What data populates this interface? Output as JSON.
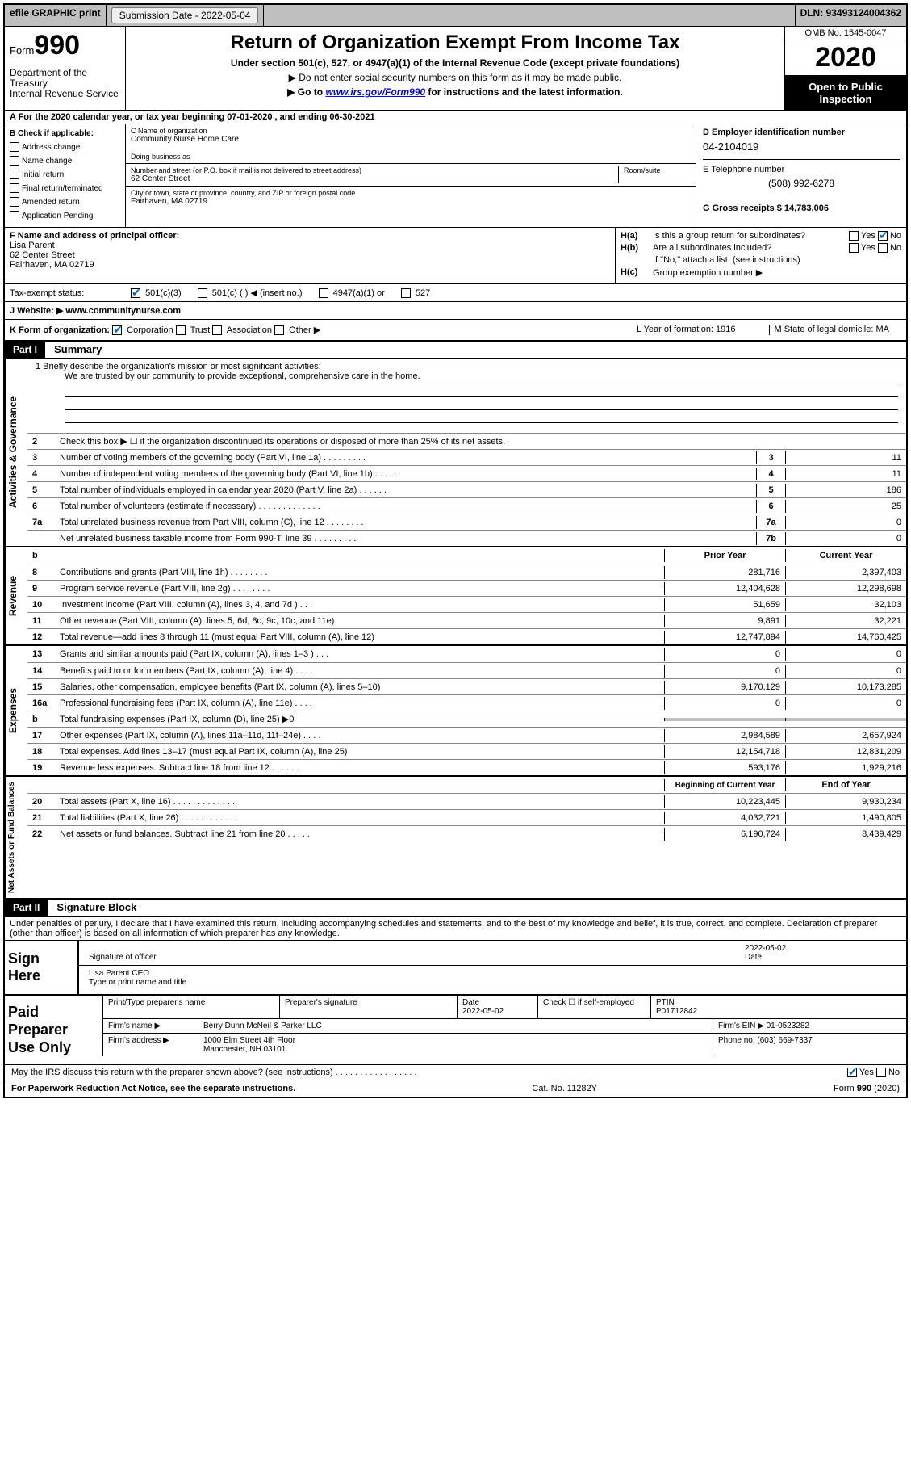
{
  "topbar": {
    "efile": "efile GRAPHIC print",
    "submission": "Submission Date - 2022-05-04",
    "dln": "DLN: 93493124004362"
  },
  "header": {
    "form": "Form",
    "num": "990",
    "dept": "Department of the Treasury\nInternal Revenue Service",
    "title": "Return of Organization Exempt From Income Tax",
    "subtitle": "Under section 501(c), 527, or 4947(a)(1) of the Internal Revenue Code (except private foundations)",
    "arrow1": "▶ Do not enter social security numbers on this form as it may be made public.",
    "arrow2_pre": "▶ Go to ",
    "arrow2_link": "www.irs.gov/Form990",
    "arrow2_post": " for instructions and the latest information.",
    "omb": "OMB No. 1545-0047",
    "year": "2020",
    "open": "Open to Public Inspection"
  },
  "row_a": "A For the 2020 calendar year, or tax year beginning 07-01-2020    , and ending 06-30-2021",
  "col_b": {
    "title": "B Check if applicable:",
    "items": [
      "Address change",
      "Name change",
      "Initial return",
      "Final return/terminated",
      "Amended return",
      "Application Pending"
    ]
  },
  "col_c": {
    "name_label": "C Name of organization",
    "name": "Community Nurse Home Care",
    "dba_label": "Doing business as",
    "dba": "",
    "street_label": "Number and street (or P.O. box if mail is not delivered to street address)",
    "street": "62 Center Street",
    "room_label": "Room/suite",
    "city_label": "City or town, state or province, country, and ZIP or foreign postal code",
    "city": "Fairhaven, MA  02719"
  },
  "col_de": {
    "d_label": "D Employer identification number",
    "d_val": "04-2104019",
    "e_label": "E Telephone number",
    "e_val": "(508) 992-6278",
    "g_label": "G Gross receipts $ 14,783,006"
  },
  "col_f": {
    "label": "F  Name and address of principal officer:",
    "name": "Lisa Parent",
    "street": "62 Center Street",
    "city": "Fairhaven, MA  02719"
  },
  "col_h": {
    "ha_label": "H(a)",
    "ha_text": "Is this a group return for subordinates?",
    "hb_label": "H(b)",
    "hb_text": "Are all subordinates included?",
    "hb_note": "If \"No,\" attach a list. (see instructions)",
    "hc_label": "H(c)",
    "hc_text": "Group exemption number ▶"
  },
  "tax_status": {
    "label": "Tax-exempt status:",
    "c3": "501(c)(3)",
    "c": "501(c) (  ) ◀ (insert no.)",
    "a1": "4947(a)(1) or",
    "s527": "527"
  },
  "row_j": {
    "label": "J Website: ▶  www.communitynurse.com"
  },
  "row_k": "K Form of organization:",
  "k_opts": [
    "Corporation",
    "Trust",
    "Association",
    "Other ▶"
  ],
  "row_l": "L Year of formation: 1916",
  "row_m": "M State of legal domicile: MA",
  "part1": {
    "header": "Part I",
    "title": "Summary",
    "mission_label": "1   Briefly describe the organization's mission or most significant activities:",
    "mission": "We are trusted by our community to provide exceptional, comprehensive care in the home.",
    "line2": "Check this box ▶ ☐  if the organization discontinued its operations or disposed of more than 25% of its net assets."
  },
  "governance": [
    {
      "n": "3",
      "d": "Number of voting members of the governing body (Part VI, line 1a)   .    .    .    .    .    .    .    .    .",
      "b": "3",
      "v": "11"
    },
    {
      "n": "4",
      "d": "Number of independent voting members of the governing body (Part VI, line 1b)   .    .    .    .    .",
      "b": "4",
      "v": "11"
    },
    {
      "n": "5",
      "d": "Total number of individuals employed in calendar year 2020 (Part V, line 2a)   .    .    .    .    .    .",
      "b": "5",
      "v": "186"
    },
    {
      "n": "6",
      "d": "Total number of volunteers (estimate if necessary)   .    .    .    .    .    .    .    .    .    .    .    .    .",
      "b": "6",
      "v": "25"
    },
    {
      "n": "7a",
      "d": "Total unrelated business revenue from Part VIII, column (C), line 12   .    .    .    .    .    .    .    .",
      "b": "7a",
      "v": "0"
    },
    {
      "n": "",
      "d": "Net unrelated business taxable income from Form 990-T, line 39   .    .    .    .    .    .    .    .    .",
      "b": "7b",
      "v": "0"
    }
  ],
  "py_header": "Prior Year",
  "cy_header": "Current Year",
  "revenue": [
    {
      "n": "8",
      "d": "Contributions and grants (Part VIII, line 1h)   .    .    .    .    .    .    .    .",
      "p": "281,716",
      "c": "2,397,403"
    },
    {
      "n": "9",
      "d": "Program service revenue (Part VIII, line 2g)   .    .    .    .    .    .    .    .",
      "p": "12,404,628",
      "c": "12,298,698"
    },
    {
      "n": "10",
      "d": "Investment income (Part VIII, column (A), lines 3, 4, and 7d )   .    .    .",
      "p": "51,659",
      "c": "32,103"
    },
    {
      "n": "11",
      "d": "Other revenue (Part VIII, column (A), lines 5, 6d, 8c, 9c, 10c, and 11e)",
      "p": "9,891",
      "c": "32,221"
    },
    {
      "n": "12",
      "d": "Total revenue—add lines 8 through 11 (must equal Part VIII, column (A), line 12)",
      "p": "12,747,894",
      "c": "14,760,425"
    }
  ],
  "expenses": [
    {
      "n": "13",
      "d": "Grants and similar amounts paid (Part IX, column (A), lines 1–3 )   .    .    .",
      "p": "0",
      "c": "0"
    },
    {
      "n": "14",
      "d": "Benefits paid to or for members (Part IX, column (A), line 4)   .    .    .    .",
      "p": "0",
      "c": "0"
    },
    {
      "n": "15",
      "d": "Salaries, other compensation, employee benefits (Part IX, column (A), lines 5–10)",
      "p": "9,170,129",
      "c": "10,173,285"
    },
    {
      "n": "16a",
      "d": "Professional fundraising fees (Part IX, column (A), line 11e)   .    .    .    .",
      "p": "0",
      "c": "0"
    },
    {
      "n": "b",
      "d": "Total fundraising expenses (Part IX, column (D), line 25) ▶0",
      "p": "",
      "c": "",
      "gray": true
    },
    {
      "n": "17",
      "d": "Other expenses (Part IX, column (A), lines 11a–11d, 11f–24e)   .    .    .    .",
      "p": "2,984,589",
      "c": "2,657,924"
    },
    {
      "n": "18",
      "d": "Total expenses. Add lines 13–17 (must equal Part IX, column (A), line 25)",
      "p": "12,154,718",
      "c": "12,831,209"
    },
    {
      "n": "19",
      "d": "Revenue less expenses. Subtract line 18 from line 12   .    .    .    .    .    .",
      "p": "593,176",
      "c": "1,929,216"
    }
  ],
  "boy_header": "Beginning of Current Year",
  "eoy_header": "End of Year",
  "netassets": [
    {
      "n": "20",
      "d": "Total assets (Part X, line 16)   .    .    .    .    .    .    .    .    .    .    .    .    .",
      "p": "10,223,445",
      "c": "9,930,234"
    },
    {
      "n": "21",
      "d": "Total liabilities (Part X, line 26)   .    .    .    .    .    .    .    .    .    .    .    .",
      "p": "4,032,721",
      "c": "1,490,805"
    },
    {
      "n": "22",
      "d": "Net assets or fund balances. Subtract line 21 from line 20   .    .    .    .    .",
      "p": "6,190,724",
      "c": "8,439,429"
    }
  ],
  "part2": {
    "header": "Part II",
    "title": "Signature Block",
    "perjury": "Under penalties of perjury, I declare that I have examined this return, including accompanying schedules and statements, and to the best of my knowledge and belief, it is true, correct, and complete. Declaration of preparer (other than officer) is based on all information of which preparer has any knowledge."
  },
  "sign": {
    "label": "Sign Here",
    "sig_label": "Signature of officer",
    "date": "2022-05-02",
    "date_label": "Date",
    "name": "Lisa Parent CEO",
    "name_label": "Type or print name and title"
  },
  "prep": {
    "label": "Paid Preparer Use Only",
    "print_label": "Print/Type preparer's name",
    "sig_label": "Preparer's signature",
    "date_label": "Date",
    "date": "2022-05-02",
    "check_label": "Check ☐ if self-employed",
    "ptin_label": "PTIN",
    "ptin": "P01712842",
    "firm_name_label": "Firm's name      ▶",
    "firm_name": "Berry Dunn McNeil & Parker LLC",
    "firm_ein_label": "Firm's EIN ▶",
    "firm_ein": "01-0523282",
    "firm_addr_label": "Firm's address ▶",
    "firm_addr1": "1000 Elm Street 4th Floor",
    "firm_addr2": "Manchester, NH  03101",
    "phone_label": "Phone no.",
    "phone": "(603) 669-7337"
  },
  "irs_discuss": "May the IRS discuss this return with the preparer shown above? (see instructions)   .    .    .    .    .    .    .    .    .    .    .    .    .    .    .    .    .",
  "footer": {
    "left": "For Paperwork Reduction Act Notice, see the separate instructions.",
    "mid": "Cat. No. 11282Y",
    "right": "Form 990 (2020)"
  }
}
